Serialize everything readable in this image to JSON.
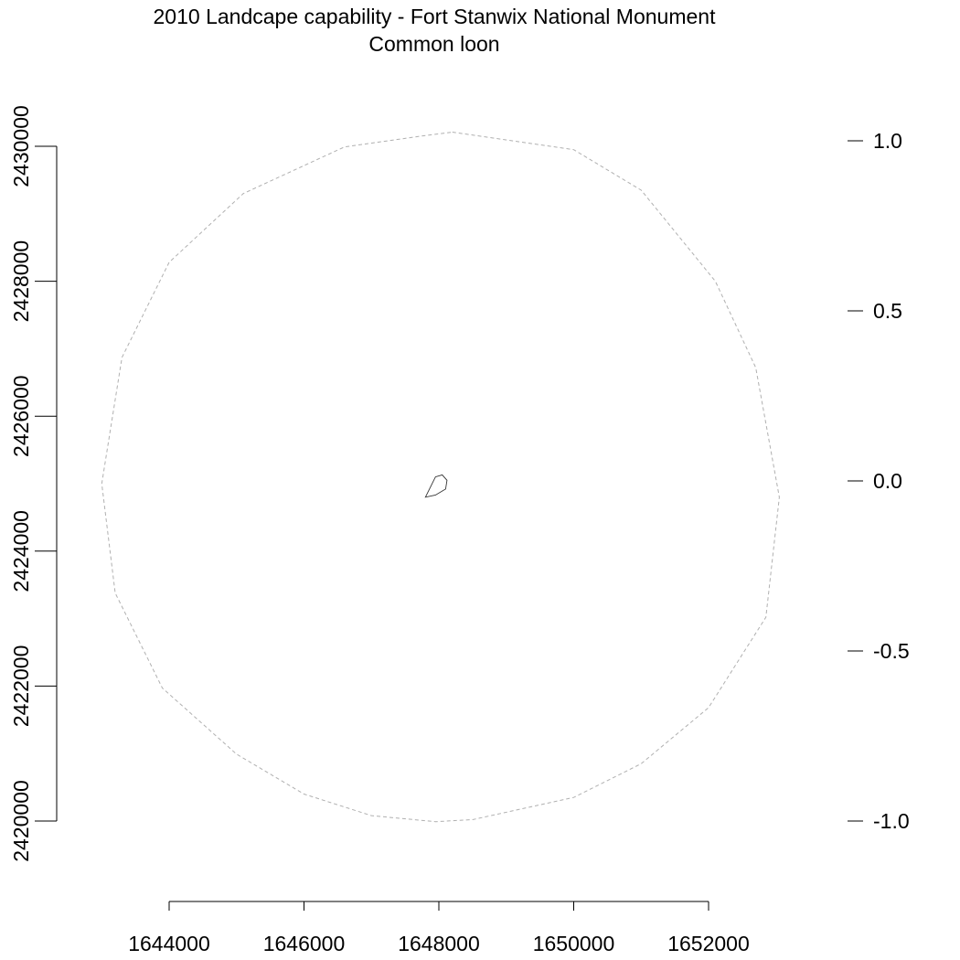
{
  "chart_data": {
    "type": "map",
    "title": "2010 Landcape capability - Fort Stanwix National Monument",
    "subtitle": "Common loon",
    "x_axis": {
      "ticks": [
        1644000,
        1646000,
        1648000,
        1650000,
        1652000
      ],
      "tick_labels": [
        "1644000",
        "1646000",
        "1648000",
        "1650000",
        "1652000"
      ],
      "range": [
        1641200,
        1653700
      ]
    },
    "y_axis": {
      "ticks": [
        2420000,
        2422000,
        2424000,
        2426000,
        2428000,
        2430000
      ],
      "tick_labels": [
        "2420000",
        "2422000",
        "2424000",
        "2426000",
        "2428000",
        "2430000"
      ],
      "range": [
        2419750,
        2430100
      ],
      "label_rotation": "vertical"
    },
    "legend_axis": {
      "position": "right",
      "ticks": [
        1.0,
        0.5,
        0.0,
        -0.5,
        -1.0
      ],
      "tick_labels": [
        "1.0",
        "0.5",
        "0.0",
        "-0.5",
        "-1.0"
      ],
      "range": [
        -1.0,
        1.0
      ]
    },
    "layers": [
      {
        "role": "buffer",
        "style": "dashed",
        "color": "#b0b0b0",
        "points": [
          [
            1648200,
            2430210
          ],
          [
            1650000,
            2429950
          ],
          [
            1651000,
            2429350
          ],
          [
            1652100,
            2428000
          ],
          [
            1652700,
            2426720
          ],
          [
            1653050,
            2424800
          ],
          [
            1652850,
            2423020
          ],
          [
            1652000,
            2421680
          ],
          [
            1651000,
            2420850
          ],
          [
            1650000,
            2420350
          ],
          [
            1648500,
            2420020
          ],
          [
            1647950,
            2419990
          ],
          [
            1647000,
            2420080
          ],
          [
            1646000,
            2420400
          ],
          [
            1645000,
            2420990
          ],
          [
            1643900,
            2421970
          ],
          [
            1643200,
            2423380
          ],
          [
            1643000,
            2425000
          ],
          [
            1643300,
            2426870
          ],
          [
            1644000,
            2428280
          ],
          [
            1645100,
            2429300
          ],
          [
            1646600,
            2429990
          ],
          [
            1647800,
            2430160
          ]
        ]
      },
      {
        "role": "park-boundary",
        "style": "solid",
        "color": "#333333",
        "points": [
          [
            1647800,
            2424800
          ],
          [
            1647950,
            2425100
          ],
          [
            1648050,
            2425130
          ],
          [
            1648120,
            2425050
          ],
          [
            1648100,
            2424920
          ],
          [
            1647950,
            2424830
          ]
        ]
      }
    ],
    "grid": false,
    "legend": "none"
  }
}
